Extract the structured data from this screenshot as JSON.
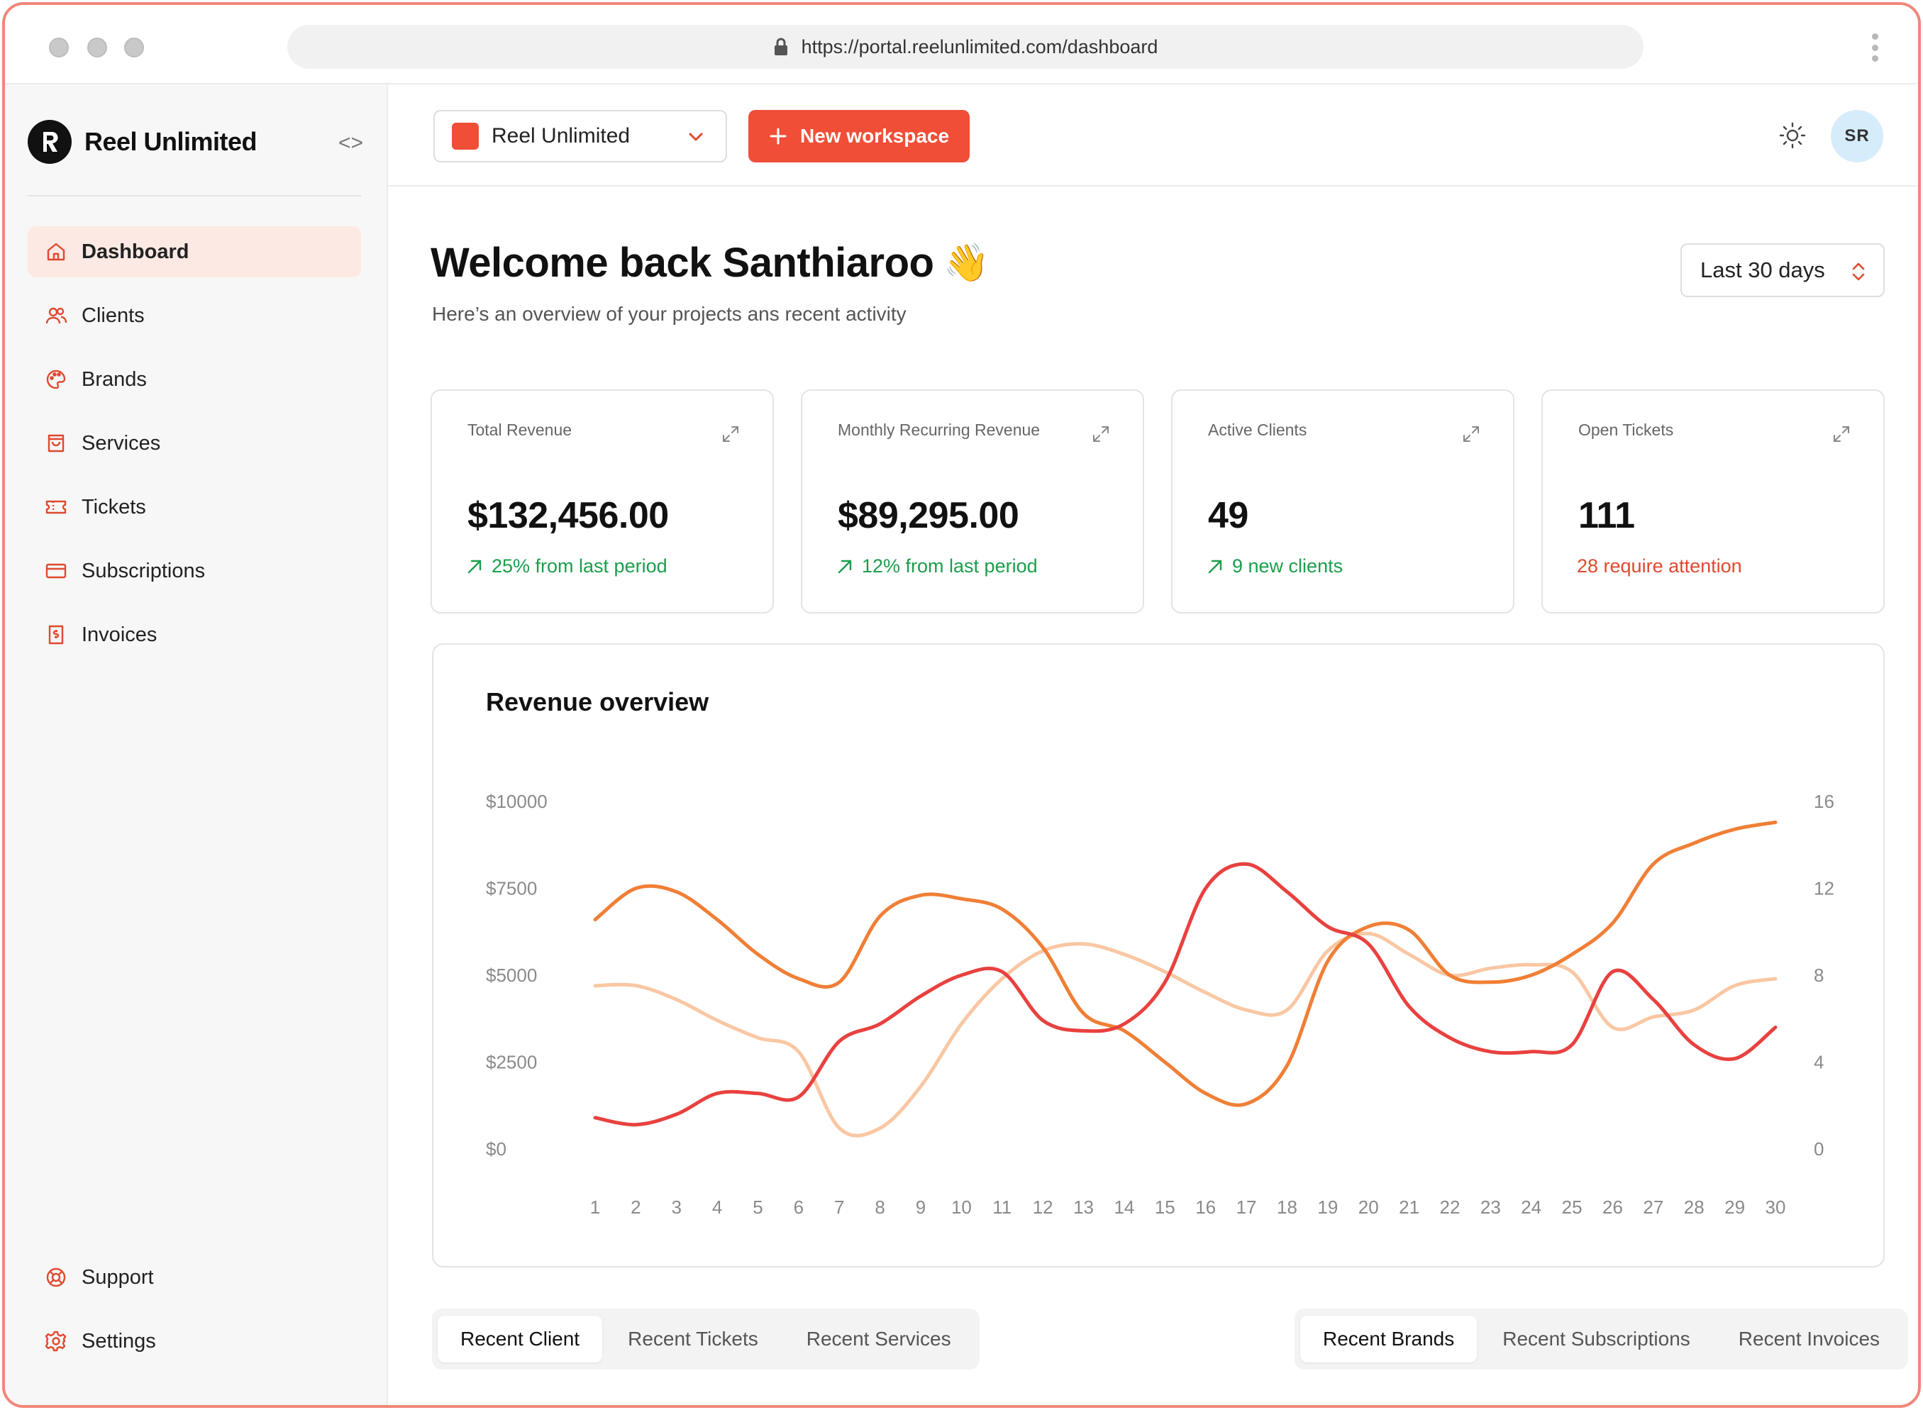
{
  "browser": {
    "url": "https://portal.reelunlimited.com/dashboard"
  },
  "sidebar": {
    "brand": "Reel Unlimited",
    "items": [
      {
        "label": "Dashboard",
        "icon": "home-icon",
        "active": true
      },
      {
        "label": "Clients",
        "icon": "users-icon"
      },
      {
        "label": "Brands",
        "icon": "palette-icon"
      },
      {
        "label": "Services",
        "icon": "shopping-bag-icon"
      },
      {
        "label": "Tickets",
        "icon": "ticket-icon"
      },
      {
        "label": "Subscriptions",
        "icon": "credit-card-icon"
      },
      {
        "label": "Invoices",
        "icon": "invoice-icon"
      }
    ],
    "footer_items": [
      {
        "label": "Support",
        "icon": "lifebuoy-icon"
      },
      {
        "label": "Settings",
        "icon": "gear-icon"
      }
    ]
  },
  "header": {
    "workspace": "Reel Unlimited",
    "new_workspace_label": "New workspace",
    "avatar_initials": "SR"
  },
  "main": {
    "welcome": "Welcome back Santhiaroo",
    "welcome_emoji": "👋",
    "subtitle": "Here’s an overview of your projects ans recent activity",
    "range": "Last 30 days",
    "cards": [
      {
        "label": "Total Revenue",
        "value": "$132,456.00",
        "note": "25% from last period",
        "trend": "up"
      },
      {
        "label": "Monthly Recurring Revenue",
        "value": "$89,295.00",
        "note": "12% from last period",
        "trend": "up"
      },
      {
        "label": "Active Clients",
        "value": "49",
        "note": "9 new clients",
        "trend": "up"
      },
      {
        "label": "Open Tickets",
        "value": "111",
        "note": "28 require attention",
        "trend": "alert"
      }
    ],
    "tabs_left": [
      "Recent Client",
      "Recent Tickets",
      "Recent Services"
    ],
    "tabs_right": [
      "Recent Brands",
      "Recent Subscriptions",
      "Recent Invoices"
    ]
  },
  "colors": {
    "accent": "#f04e37",
    "series_red": "#e8413f",
    "series_orange": "#f07f36",
    "series_peach": "#f9c7a3"
  },
  "chart_data": {
    "type": "line",
    "title": "Revenue overview",
    "x": [
      1,
      2,
      3,
      4,
      5,
      6,
      7,
      8,
      9,
      10,
      11,
      12,
      13,
      14,
      15,
      16,
      17,
      18,
      19,
      20,
      21,
      22,
      23,
      24,
      25,
      26,
      27,
      28,
      29,
      30
    ],
    "y_left_ticks": [
      "$10000",
      "$7500",
      "$5000",
      "$2500",
      "$0"
    ],
    "y_right_ticks": [
      "16",
      "12",
      "8",
      "4",
      "0"
    ],
    "ylim": [
      0,
      10000
    ],
    "y2lim": [
      0,
      16
    ],
    "grid": false,
    "series": [
      {
        "color": "#f07f36",
        "values": [
          6600,
          7500,
          7400,
          6600,
          5600,
          4900,
          4800,
          6700,
          7300,
          7200,
          6900,
          5800,
          3900,
          3400,
          2500,
          1600,
          1300,
          2400,
          5400,
          6400,
          6300,
          5000,
          4800,
          5000,
          5600,
          6500,
          8200,
          8800,
          9200,
          9400
        ]
      },
      {
        "color": "#e8413f",
        "values": [
          900,
          700,
          1000,
          1600,
          1600,
          1500,
          3100,
          3600,
          4400,
          5000,
          5100,
          3700,
          3400,
          3600,
          4800,
          7500,
          8200,
          7400,
          6400,
          5900,
          4100,
          3200,
          2800,
          2800,
          3000,
          5100,
          4300,
          3000,
          2600,
          3500
        ]
      },
      {
        "color": "#f9c7a3",
        "values": [
          4700,
          4700,
          4300,
          3700,
          3200,
          2800,
          600,
          600,
          1800,
          3600,
          4900,
          5700,
          5900,
          5600,
          5100,
          4500,
          4000,
          4000,
          5700,
          6200,
          5600,
          5000,
          5200,
          5300,
          5100,
          3500,
          3800,
          4000,
          4700,
          4900
        ]
      }
    ]
  }
}
